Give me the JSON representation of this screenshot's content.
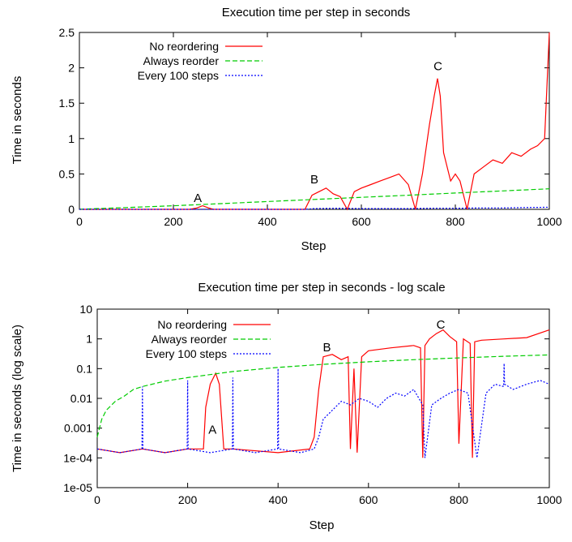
{
  "chart_data": [
    {
      "type": "line",
      "title": "Execution time per step in seconds",
      "xlabel": "Step",
      "ylabel": "Time in seconds",
      "xlim": [
        0,
        1000
      ],
      "ylim": [
        0,
        2.5
      ],
      "yscale": "linear",
      "xticks": [
        "0",
        "200",
        "400",
        "600",
        "800",
        "1000"
      ],
      "yticks": [
        "0",
        "0.5",
        "1",
        "1.5",
        "2",
        "2.5"
      ],
      "legend_position": "top-left",
      "grid": false,
      "series": [
        {
          "name": "No reordering",
          "color": "#ff0000",
          "style": "solid",
          "x": [
            0,
            235,
            250,
            262,
            275,
            285,
            480,
            495,
            510,
            525,
            540,
            555,
            570,
            585,
            600,
            620,
            640,
            660,
            680,
            700,
            715,
            730,
            745,
            755,
            762,
            768,
            775,
            790,
            800,
            810,
            825,
            840,
            860,
            880,
            900,
            920,
            940,
            960,
            975,
            990,
            1000
          ],
          "y": [
            0.0002,
            0.0002,
            0.02,
            0.05,
            0.02,
            0.0002,
            0.0002,
            0.2,
            0.25,
            0.3,
            0.22,
            0.18,
            0.0,
            0.25,
            0.3,
            0.35,
            0.4,
            0.45,
            0.5,
            0.35,
            0.0,
            0.5,
            1.2,
            1.6,
            1.85,
            1.6,
            0.8,
            0.4,
            0.5,
            0.4,
            0.0,
            0.5,
            0.6,
            0.7,
            0.65,
            0.8,
            0.75,
            0.85,
            0.9,
            1.0,
            2.5
          ]
        },
        {
          "name": "Always reorder",
          "color": "#00cc00",
          "style": "dashed",
          "x": [
            0,
            100,
            200,
            300,
            400,
            500,
            600,
            700,
            800,
            900,
            1000
          ],
          "y": [
            0.001,
            0.025,
            0.05,
            0.08,
            0.11,
            0.14,
            0.17,
            0.2,
            0.23,
            0.26,
            0.29
          ]
        },
        {
          "name": "Every 100 steps",
          "color": "#0000ff",
          "style": "dotted",
          "x": [
            0,
            100,
            200,
            300,
            400,
            480,
            500,
            550,
            600,
            650,
            700,
            750,
            800,
            850,
            900,
            950,
            1000
          ],
          "y": [
            0.0002,
            0.0002,
            0.0002,
            0.0002,
            0.0002,
            0.0002,
            0.01,
            0.015,
            0.01,
            0.01,
            0.01,
            0.015,
            0.015,
            0.02,
            0.02,
            0.025,
            0.03
          ]
        }
      ],
      "annotations": [
        {
          "text": "A",
          "x": 252,
          "y": 0.06
        },
        {
          "text": "B",
          "x": 500,
          "y": 0.32
        },
        {
          "text": "C",
          "x": 763,
          "y": 1.92
        }
      ]
    },
    {
      "type": "line",
      "title": "Execution time per step in seconds - log scale",
      "xlabel": "Step",
      "ylabel": "Time in seconds (log scale)",
      "xlim": [
        0,
        1000
      ],
      "ylim": [
        1e-05,
        10
      ],
      "yscale": "log",
      "xticks": [
        "0",
        "200",
        "400",
        "600",
        "800",
        "1000"
      ],
      "yticks": [
        "10",
        "1",
        "0.1",
        "0.01",
        "0.001",
        "1e-04",
        "1e-05"
      ],
      "legend_position": "top-left",
      "grid": false,
      "series": [
        {
          "name": "No reordering",
          "color": "#ff0000",
          "style": "solid",
          "x": [
            0,
            50,
            100,
            150,
            200,
            235,
            240,
            250,
            262,
            270,
            280,
            300,
            400,
            470,
            480,
            490,
            500,
            520,
            540,
            555,
            560,
            568,
            575,
            585,
            600,
            650,
            700,
            715,
            720,
            725,
            735,
            750,
            765,
            780,
            795,
            800,
            810,
            825,
            830,
            835,
            850,
            900,
            950,
            1000
          ],
          "y": [
            0.0002,
            0.00015,
            0.0002,
            0.00015,
            0.0002,
            0.0002,
            0.005,
            0.03,
            0.07,
            0.03,
            0.0002,
            0.0002,
            0.00015,
            0.0002,
            0.0005,
            0.02,
            0.25,
            0.3,
            0.2,
            0.25,
            0.0002,
            0.1,
            0.00015,
            0.25,
            0.4,
            0.5,
            0.6,
            0.5,
            0.0001,
            0.6,
            1.0,
            1.5,
            2.0,
            1.2,
            0.8,
            0.0003,
            1.0,
            0.7,
            0.0001,
            0.8,
            0.9,
            1.0,
            1.1,
            2.0
          ]
        },
        {
          "name": "Always reorder",
          "color": "#00cc00",
          "style": "dashed",
          "x": [
            0,
            5,
            10,
            20,
            40,
            60,
            80,
            100,
            150,
            200,
            300,
            400,
            500,
            600,
            700,
            800,
            900,
            1000
          ],
          "y": [
            0.0005,
            0.001,
            0.002,
            0.004,
            0.008,
            0.012,
            0.02,
            0.025,
            0.038,
            0.05,
            0.08,
            0.11,
            0.14,
            0.17,
            0.2,
            0.23,
            0.26,
            0.29
          ]
        },
        {
          "name": "Every 100 steps",
          "color": "#0000ff",
          "style": "dotted",
          "x": [
            0,
            50,
            99,
            100,
            101,
            150,
            199,
            200,
            201,
            250,
            299,
            300,
            301,
            350,
            399,
            400,
            401,
            450,
            480,
            490,
            500,
            520,
            540,
            560,
            580,
            600,
            620,
            640,
            660,
            680,
            700,
            720,
            725,
            740,
            760,
            780,
            800,
            820,
            840,
            860,
            880,
            899,
            900,
            901,
            920,
            950,
            980,
            1000
          ],
          "y": [
            0.0002,
            0.00015,
            0.0002,
            0.025,
            0.0002,
            0.00015,
            0.0002,
            0.04,
            0.0002,
            0.00015,
            0.0002,
            0.05,
            0.0002,
            0.00015,
            0.0002,
            0.1,
            0.0002,
            0.00015,
            0.0002,
            0.0005,
            0.002,
            0.004,
            0.008,
            0.006,
            0.01,
            0.008,
            0.005,
            0.01,
            0.015,
            0.012,
            0.02,
            0.006,
            0.0001,
            0.006,
            0.01,
            0.015,
            0.02,
            0.015,
            0.0001,
            0.015,
            0.03,
            0.025,
            0.15,
            0.03,
            0.02,
            0.03,
            0.04,
            0.03
          ]
        }
      ],
      "annotations": [
        {
          "text": "A",
          "x": 255,
          "y": 0.0005
        },
        {
          "text": "B",
          "x": 508,
          "y": 0.3
        },
        {
          "text": "C",
          "x": 760,
          "y": 1.7
        }
      ]
    }
  ]
}
